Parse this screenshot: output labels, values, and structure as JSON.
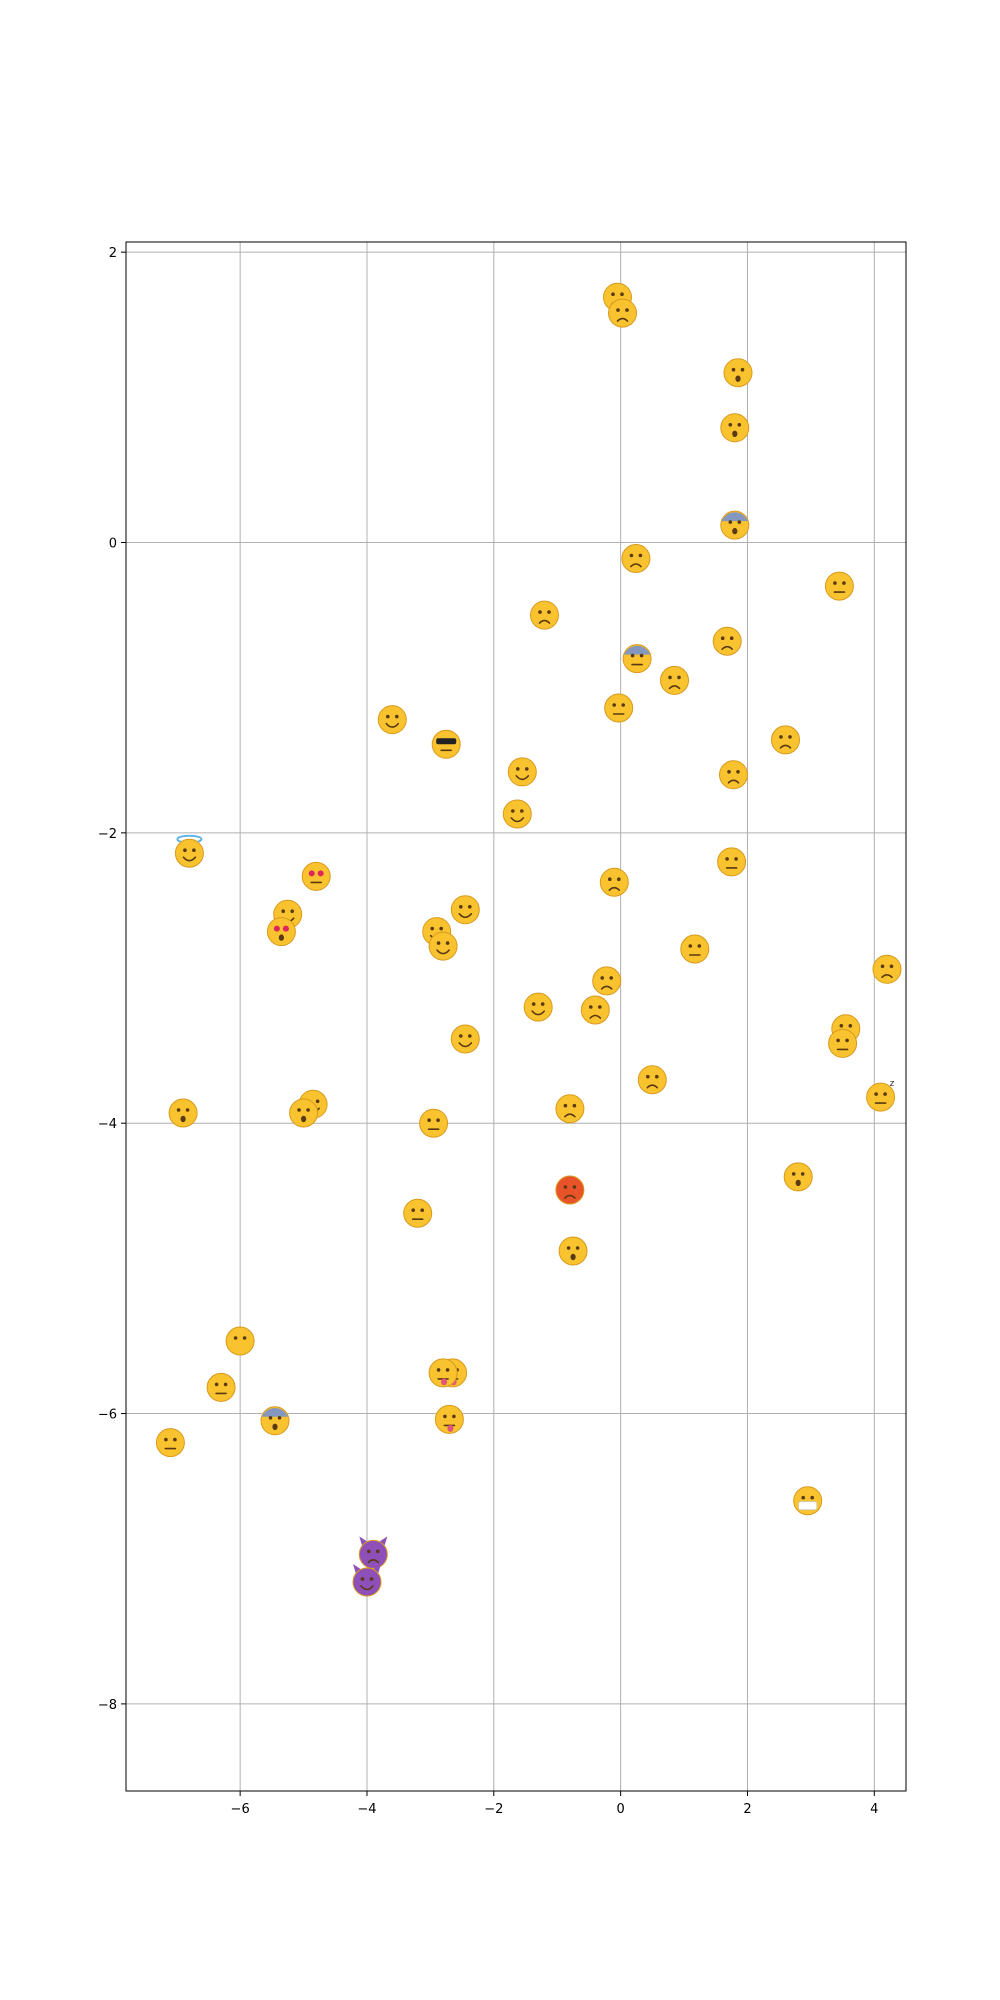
{
  "chart_data": {
    "type": "scatter",
    "title": "",
    "xlabel": "",
    "ylabel": "",
    "xlim": [
      -7.8,
      4.5
    ],
    "ylim": [
      -8.6,
      2.07
    ],
    "grid": true,
    "x_ticks": [
      -6,
      -4,
      -2,
      0,
      2,
      4
    ],
    "y_ticks": [
      2,
      0,
      -2,
      -4,
      -6,
      -8
    ],
    "x_tick_labels": [
      "−6",
      "−4",
      "−2",
      "0",
      "2",
      "4"
    ],
    "y_tick_labels": [
      "2",
      "0",
      "−2",
      "−4",
      "−6",
      "−8"
    ],
    "colors": {
      "face_yellow": "#f9c32f",
      "face_orange": "#e8532a",
      "face_purple": "#8e4fb8",
      "face_blue": "#6f8fd8",
      "grid": "#b0b0b0",
      "axis": "#000000"
    },
    "points": [
      {
        "x": -0.05,
        "y": 1.69,
        "icon": "squinting-face-icon"
      },
      {
        "x": 0.03,
        "y": 1.58,
        "icon": "confused-face-icon"
      },
      {
        "x": 1.85,
        "y": 1.17,
        "icon": "hushed-face-icon"
      },
      {
        "x": 1.8,
        "y": 0.79,
        "icon": "dizzy-face-icon"
      },
      {
        "x": 1.8,
        "y": 0.12,
        "icon": "fearful-blue-face-icon"
      },
      {
        "x": 0.24,
        "y": -0.11,
        "icon": "triumph-face-icon"
      },
      {
        "x": 3.45,
        "y": -0.3,
        "icon": "relieved-face-icon"
      },
      {
        "x": -1.2,
        "y": -0.5,
        "icon": "persevering-face-icon"
      },
      {
        "x": 1.68,
        "y": -0.68,
        "icon": "worried-face-icon"
      },
      {
        "x": 0.26,
        "y": -0.8,
        "icon": "anxious-blue-face-icon"
      },
      {
        "x": 0.85,
        "y": -0.95,
        "icon": "angry-face-icon"
      },
      {
        "x": -0.03,
        "y": -1.14,
        "icon": "downcast-sweat-face-icon"
      },
      {
        "x": -3.6,
        "y": -1.22,
        "icon": "yum-face-icon"
      },
      {
        "x": -2.75,
        "y": -1.39,
        "icon": "sunglasses-face-icon"
      },
      {
        "x": 2.6,
        "y": -1.36,
        "icon": "disappointed-relieved-face-icon"
      },
      {
        "x": -1.55,
        "y": -1.58,
        "icon": "sweat-smile-face-icon"
      },
      {
        "x": 1.78,
        "y": -1.6,
        "icon": "disappointed-face-icon"
      },
      {
        "x": -1.63,
        "y": -1.87,
        "icon": "grin-face-icon"
      },
      {
        "x": -6.8,
        "y": -2.14,
        "icon": "halo-face-icon"
      },
      {
        "x": 1.75,
        "y": -2.2,
        "icon": "unamused-face-icon"
      },
      {
        "x": -4.8,
        "y": -2.3,
        "icon": "heart-eyes-face-icon"
      },
      {
        "x": -0.1,
        "y": -2.34,
        "icon": "pensive-face-icon"
      },
      {
        "x": -5.25,
        "y": -2.56,
        "icon": "blush-face-icon"
      },
      {
        "x": -2.45,
        "y": -2.53,
        "icon": "smiley-face-icon"
      },
      {
        "x": -5.35,
        "y": -2.68,
        "icon": "kissing-heart-face-icon"
      },
      {
        "x": -2.9,
        "y": -2.68,
        "icon": "laughing-face-icon"
      },
      {
        "x": -2.8,
        "y": -2.78,
        "icon": "smile-face-icon"
      },
      {
        "x": 1.17,
        "y": -2.8,
        "icon": "grimacing-face-icon"
      },
      {
        "x": 4.2,
        "y": -2.94,
        "icon": "weary-face-icon"
      },
      {
        "x": -0.22,
        "y": -3.02,
        "icon": "sob-face-icon"
      },
      {
        "x": -1.3,
        "y": -3.2,
        "icon": "joy-face-icon"
      },
      {
        "x": -0.4,
        "y": -3.22,
        "icon": "cry-face-icon"
      },
      {
        "x": 3.55,
        "y": -3.35,
        "icon": "tired-face-icon"
      },
      {
        "x": 3.5,
        "y": -3.45,
        "icon": "sleepy-face-icon"
      },
      {
        "x": -2.45,
        "y": -3.42,
        "icon": "satisfied-face-icon"
      },
      {
        "x": 0.5,
        "y": -3.7,
        "icon": "anguished-face-icon"
      },
      {
        "x": 4.1,
        "y": -3.82,
        "icon": "sleeping-face-icon"
      },
      {
        "x": -4.85,
        "y": -3.87,
        "icon": "grinning-face-icon"
      },
      {
        "x": -0.8,
        "y": -3.9,
        "icon": "frowning-face-icon"
      },
      {
        "x": -6.9,
        "y": -3.93,
        "icon": "open-mouth-face-icon"
      },
      {
        "x": -5,
        "y": -3.93,
        "icon": "kissing-face-icon"
      },
      {
        "x": -2.95,
        "y": -4.0,
        "icon": "smirk-face-icon"
      },
      {
        "x": -0.8,
        "y": -4.46,
        "icon": "rage-face-icon"
      },
      {
        "x": 2.8,
        "y": -4.37,
        "icon": "astonished-face-icon"
      },
      {
        "x": -3.2,
        "y": -4.62,
        "icon": "wink-face-icon"
      },
      {
        "x": -0.75,
        "y": -4.88,
        "icon": "flushed-face-icon"
      },
      {
        "x": -6.0,
        "y": -5.5,
        "icon": "no-mouth-face-icon"
      },
      {
        "x": -2.65,
        "y": -5.72,
        "icon": "stuck-out-tongue-winking-face-icon"
      },
      {
        "x": -2.8,
        "y": -5.72,
        "icon": "stuck-out-tongue-wink-eye-face-icon"
      },
      {
        "x": -6.3,
        "y": -5.82,
        "icon": "expressionless-face-icon"
      },
      {
        "x": -5.45,
        "y": -6.05,
        "icon": "scream-blue-face-icon"
      },
      {
        "x": -2.7,
        "y": -6.04,
        "icon": "stuck-out-tongue-face-icon"
      },
      {
        "x": -7.1,
        "y": -6.2,
        "icon": "neutral-face-icon"
      },
      {
        "x": 2.95,
        "y": -6.6,
        "icon": "mask-face-icon"
      },
      {
        "x": -3.9,
        "y": -6.97,
        "icon": "imp-purple-face-icon"
      },
      {
        "x": -4.0,
        "y": -7.16,
        "icon": "smiling-imp-purple-face-icon"
      }
    ]
  }
}
